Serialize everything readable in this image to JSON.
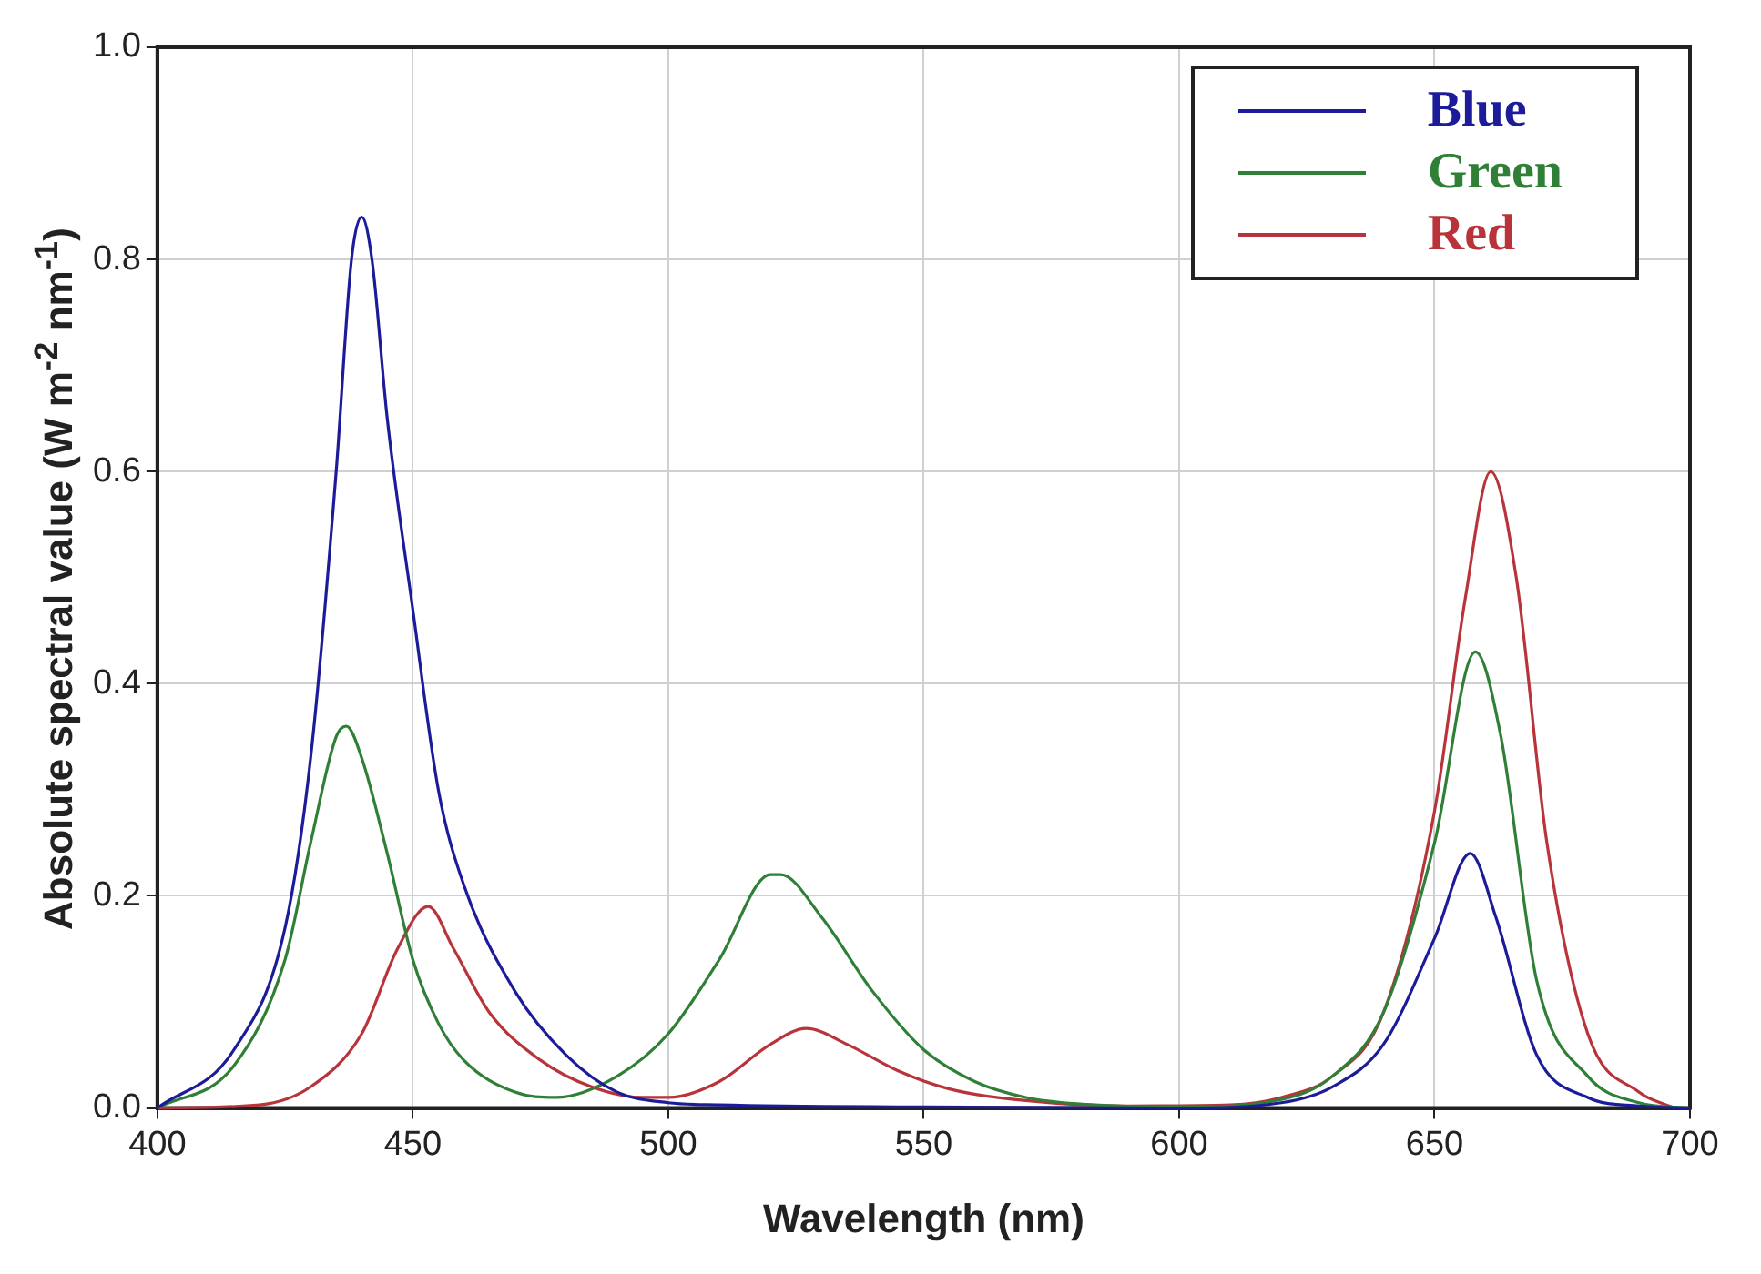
{
  "chart_data": {
    "type": "line",
    "xlabel": "Wavelength (nm)",
    "ylabel": "Absolute spectral value (W m$^{-2}$ nm$^{-1}$)",
    "xlim": [
      400,
      700
    ],
    "xticks": [
      400,
      450,
      500,
      550,
      600,
      650,
      700
    ],
    "ylim": [
      0,
      1
    ],
    "yticks": [
      {
        "value": 0,
        "label": "0.0"
      },
      0.2,
      0.4,
      0.6,
      0.8,
      {
        "value": 1,
        "label": "1.0"
      }
    ],
    "grid": true,
    "legend": "top right",
    "marker": "none",
    "line_style": "solid",
    "series": [
      {
        "name": "Blue",
        "color": "#1c1c9a",
        "x": [
          400,
          415,
          425,
          430,
          435,
          438,
          440,
          442,
          445,
          450,
          455,
          460,
          470,
          480,
          490,
          500,
          510,
          550,
          600,
          620,
          630,
          640,
          650,
          657,
          662,
          670,
          680,
          690,
          700
        ],
        "values": [
          0,
          0.055,
          0.17,
          0.33,
          0.6,
          0.8,
          0.84,
          0.8,
          0.65,
          0.47,
          0.3,
          0.21,
          0.11,
          0.05,
          0.015,
          0.005,
          0.003,
          0.001,
          0,
          0.005,
          0.02,
          0.06,
          0.16,
          0.24,
          0.18,
          0.05,
          0.01,
          0.002,
          0
        ]
      },
      {
        "name": "Green",
        "color": "#2f7f36",
        "x": [
          400,
          415,
          425,
          430,
          435,
          437,
          440,
          445,
          450,
          455,
          460,
          470,
          478,
          490,
          500,
          510,
          520,
          522,
          530,
          540,
          550,
          560,
          570,
          580,
          600,
          620,
          630,
          640,
          650,
          658,
          663,
          670,
          680,
          690,
          700
        ],
        "values": [
          0,
          0.04,
          0.14,
          0.25,
          0.35,
          0.36,
          0.33,
          0.24,
          0.14,
          0.08,
          0.045,
          0.015,
          0.01,
          0.03,
          0.07,
          0.14,
          0.22,
          0.22,
          0.18,
          0.11,
          0.055,
          0.025,
          0.01,
          0.004,
          0.001,
          0.008,
          0.03,
          0.09,
          0.25,
          0.43,
          0.35,
          0.12,
          0.03,
          0.005,
          0
        ]
      },
      {
        "name": "Red",
        "color": "#b8343a",
        "x": [
          400,
          420,
          430,
          440,
          447,
          453,
          458,
          465,
          475,
          485,
          495,
          500,
          510,
          520,
          527,
          535,
          545,
          555,
          570,
          590,
          610,
          620,
          630,
          640,
          650,
          656,
          661,
          666,
          672,
          680,
          690,
          697
        ],
        "values": [
          0,
          0.003,
          0.02,
          0.07,
          0.15,
          0.19,
          0.15,
          0.09,
          0.045,
          0.02,
          0.01,
          0.01,
          0.025,
          0.06,
          0.075,
          0.06,
          0.035,
          0.018,
          0.007,
          0.002,
          0.003,
          0.01,
          0.03,
          0.09,
          0.28,
          0.48,
          0.6,
          0.5,
          0.25,
          0.07,
          0.015,
          0
        ]
      }
    ]
  }
}
